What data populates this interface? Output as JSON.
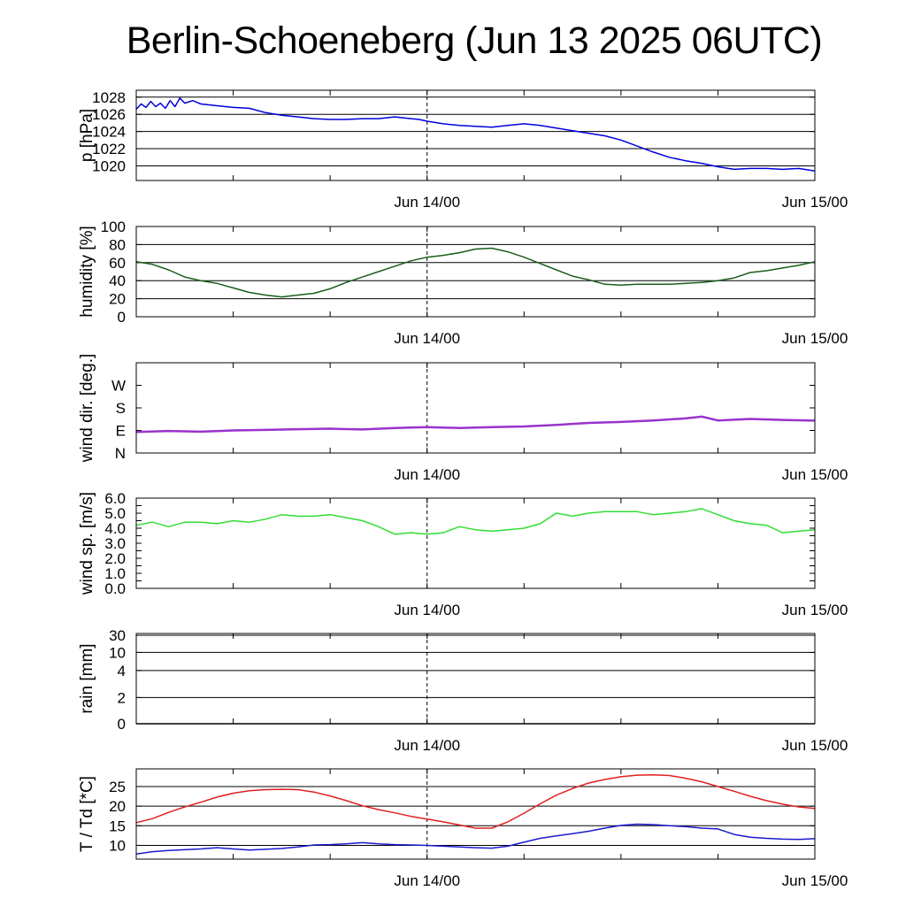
{
  "title": "Berlin-Schoeneberg (Jun 13 2025 06UTC)",
  "chart_data": [
    {
      "type": "line",
      "id": "pressure",
      "ylabel": "p [hPa]",
      "ylim": [
        1018.3,
        1028.8
      ],
      "yticks": [
        1020,
        1022,
        1024,
        1026,
        1028
      ],
      "gridlines": [
        1020,
        1022,
        1024,
        1026,
        1028
      ],
      "x_range_hours": [
        0,
        42
      ],
      "x_markers": [
        {
          "label": "Jun 14/00",
          "hour": 18
        },
        {
          "label": "Jun 15/00",
          "hour": 42
        }
      ],
      "series": [
        {
          "color": "#0000dd",
          "x": [
            0,
            0.3,
            0.6,
            0.9,
            1.2,
            1.5,
            1.8,
            2.1,
            2.4,
            2.7,
            3.0,
            3.5,
            4,
            5,
            6,
            7,
            8,
            9,
            10,
            11,
            12,
            13,
            14,
            15,
            16,
            17,
            17.5,
            18,
            19,
            20,
            21,
            22,
            23,
            24,
            25,
            26,
            27,
            28,
            29,
            30,
            31,
            32,
            33,
            34,
            35,
            36,
            37,
            38,
            39,
            40,
            41,
            42
          ],
          "values": [
            1026.6,
            1027.2,
            1026.8,
            1027.5,
            1026.9,
            1027.3,
            1026.7,
            1027.6,
            1026.9,
            1027.9,
            1027.3,
            1027.6,
            1027.2,
            1027.0,
            1026.8,
            1026.7,
            1026.2,
            1025.9,
            1025.7,
            1025.5,
            1025.4,
            1025.4,
            1025.5,
            1025.5,
            1025.7,
            1025.5,
            1025.4,
            1025.2,
            1024.9,
            1024.7,
            1024.6,
            1024.5,
            1024.7,
            1024.9,
            1024.7,
            1024.4,
            1024.1,
            1023.8,
            1023.5,
            1023.0,
            1022.3,
            1021.6,
            1021.0,
            1020.6,
            1020.3,
            1019.9,
            1019.6,
            1019.7,
            1019.7,
            1019.6,
            1019.7,
            1019.4
          ]
        }
      ]
    },
    {
      "type": "line",
      "id": "humidity",
      "ylabel": "humidity [%]",
      "ylim": [
        0,
        100
      ],
      "yticks": [
        0,
        20,
        40,
        60,
        80,
        100
      ],
      "gridlines": [
        20,
        40,
        60,
        80
      ],
      "x_range_hours": [
        0,
        42
      ],
      "x_markers": [
        {
          "label": "Jun 14/00",
          "hour": 18
        },
        {
          "label": "Jun 15/00",
          "hour": 42
        }
      ],
      "series": [
        {
          "color": "#1a5e1a",
          "x": [
            0,
            1,
            2,
            3,
            4,
            5,
            6,
            7,
            8,
            9,
            10,
            11,
            12,
            13,
            14,
            15,
            16,
            17,
            18,
            19,
            20,
            21,
            22,
            23,
            24,
            25,
            26,
            27,
            28,
            29,
            30,
            31,
            32,
            33,
            34,
            35,
            36,
            37,
            38,
            39,
            40,
            41,
            42
          ],
          "values": [
            61,
            58,
            52,
            44,
            40,
            37,
            32,
            27,
            24,
            22,
            24,
            26,
            31,
            38,
            44,
            50,
            56,
            62,
            66,
            68,
            71,
            75,
            76,
            72,
            66,
            59,
            52,
            45,
            41,
            36,
            35,
            36,
            36,
            36,
            37,
            38,
            40,
            43,
            49,
            51,
            54,
            57,
            61
          ]
        }
      ]
    },
    {
      "type": "line",
      "id": "wind_direction",
      "ylabel": "wind dir. [deg.]",
      "ylim": [
        0,
        360
      ],
      "yticks": [
        0,
        90,
        180,
        270
      ],
      "ytick_labels": [
        "N",
        "E",
        "S",
        "W"
      ],
      "gridlines": [],
      "x_range_hours": [
        0,
        42
      ],
      "x_markers": [
        {
          "label": "Jun 14/00",
          "hour": 18
        },
        {
          "label": "Jun 15/00",
          "hour": 42
        }
      ],
      "series": [
        {
          "color": "#9933cc",
          "x": [
            0,
            2,
            4,
            6,
            8,
            10,
            12,
            14,
            16,
            18,
            20,
            22,
            24,
            26,
            28,
            30,
            32,
            34,
            35,
            36,
            38,
            40,
            42
          ],
          "values": [
            84,
            88,
            85,
            90,
            92,
            95,
            97,
            94,
            100,
            103,
            100,
            103,
            106,
            112,
            120,
            124,
            130,
            138,
            145,
            130,
            136,
            132,
            129
          ]
        }
      ]
    },
    {
      "type": "line",
      "id": "wind_speed",
      "ylabel": "wind sp. [m/s]",
      "ylim": [
        0,
        6
      ],
      "yticks": [
        0,
        0.5,
        1,
        1.5,
        2,
        2.5,
        3,
        3.5,
        4,
        4.5,
        5,
        5.5,
        6
      ],
      "ytick_labels": [
        "0.0",
        "",
        "1.0",
        "",
        "2.0",
        "",
        "3.0",
        "",
        "4.0",
        "",
        "5.0",
        "",
        "6.0"
      ],
      "gridlines": [],
      "x_range_hours": [
        0,
        42
      ],
      "x_markers": [
        {
          "label": "Jun 14/00",
          "hour": 18
        },
        {
          "label": "Jun 15/00",
          "hour": 42
        }
      ],
      "series": [
        {
          "color": "#33dd33",
          "x": [
            0,
            1,
            2,
            3,
            4,
            5,
            6,
            7,
            8,
            9,
            10,
            11,
            12,
            13,
            14,
            15,
            16,
            17,
            18,
            19,
            20,
            21,
            22,
            23,
            24,
            25,
            26,
            27,
            28,
            29,
            30,
            31,
            32,
            33,
            34,
            35,
            36,
            37,
            38,
            39,
            40,
            41,
            42
          ],
          "values": [
            4.2,
            4.4,
            4.1,
            4.4,
            4.4,
            4.3,
            4.5,
            4.4,
            4.6,
            4.9,
            4.8,
            4.8,
            4.9,
            4.7,
            4.5,
            4.1,
            3.6,
            3.7,
            3.6,
            3.7,
            4.1,
            3.9,
            3.8,
            3.9,
            4.0,
            4.3,
            5.0,
            4.8,
            5.0,
            5.1,
            5.1,
            5.1,
            4.9,
            5.0,
            5.1,
            5.3,
            4.9,
            4.5,
            4.3,
            4.2,
            3.7,
            3.8,
            3.9
          ]
        }
      ]
    },
    {
      "type": "line",
      "id": "rain",
      "ylabel": "rain [mm]",
      "ylim": [
        0,
        30
      ],
      "yticks": [
        0,
        2,
        4,
        10,
        30
      ],
      "ytick_labels": [
        "0",
        "2",
        "4",
        "10",
        "30"
      ],
      "scale": "nonlinear",
      "gridlines": [
        2,
        4,
        10,
        30
      ],
      "x_range_hours": [
        0,
        42
      ],
      "x_markers": [
        {
          "label": "Jun 14/00",
          "hour": 18
        },
        {
          "label": "Jun 15/00",
          "hour": 42
        }
      ],
      "series": [
        {
          "color": "#000000",
          "x": [
            0,
            42
          ],
          "values": [
            0,
            0
          ]
        }
      ]
    },
    {
      "type": "line",
      "id": "temperature",
      "ylabel": "T / Td [*C]",
      "ylim": [
        6.5,
        29.5
      ],
      "yticks": [
        10,
        15,
        20,
        25
      ],
      "gridlines": [
        10,
        15,
        20,
        25
      ],
      "x_range_hours": [
        0,
        42
      ],
      "x_markers": [
        {
          "label": "Jun 14/00",
          "hour": 18
        },
        {
          "label": "Jun 15/00",
          "hour": 42
        }
      ],
      "series": [
        {
          "color": "#e02020",
          "x": [
            0,
            1,
            2,
            3,
            4,
            5,
            6,
            7,
            8,
            9,
            10,
            11,
            12,
            13,
            14,
            15,
            16,
            17,
            18,
            19,
            20,
            21,
            22,
            23,
            24,
            25,
            26,
            27,
            28,
            29,
            30,
            31,
            32,
            33,
            34,
            35,
            36,
            37,
            38,
            39,
            40,
            41,
            42
          ],
          "values": [
            15.8,
            16.8,
            18.4,
            19.8,
            21.0,
            22.3,
            23.3,
            23.9,
            24.2,
            24.3,
            24.2,
            23.6,
            22.6,
            21.4,
            20.1,
            19.1,
            18.3,
            17.4,
            16.7,
            16.0,
            15.2,
            14.4,
            14.4,
            16.0,
            18.2,
            20.6,
            22.8,
            24.5,
            25.9,
            26.8,
            27.5,
            27.9,
            28.0,
            27.8,
            27.1,
            26.2,
            25.0,
            23.8,
            22.5,
            21.4,
            20.5,
            19.8,
            19.4
          ]
        },
        {
          "color": "#1a1ad0",
          "x": [
            0,
            1,
            2,
            3,
            4,
            5,
            6,
            7,
            8,
            9,
            10,
            11,
            12,
            13,
            14,
            15,
            16,
            17,
            18,
            19,
            20,
            21,
            22,
            23,
            24,
            25,
            26,
            27,
            28,
            29,
            30,
            31,
            32,
            33,
            34,
            35,
            36,
            37,
            38,
            39,
            40,
            41,
            42
          ],
          "values": [
            7.8,
            8.4,
            8.7,
            8.9,
            9.1,
            9.4,
            9.1,
            8.8,
            9.0,
            9.2,
            9.6,
            10.1,
            10.2,
            10.4,
            10.7,
            10.4,
            10.2,
            10.1,
            10.0,
            9.8,
            9.6,
            9.4,
            9.3,
            9.8,
            10.8,
            11.8,
            12.4,
            13.0,
            13.6,
            14.4,
            15.1,
            15.4,
            15.3,
            15.0,
            14.8,
            14.4,
            14.2,
            12.8,
            12.1,
            11.8,
            11.6,
            11.5,
            11.7
          ]
        }
      ]
    }
  ]
}
